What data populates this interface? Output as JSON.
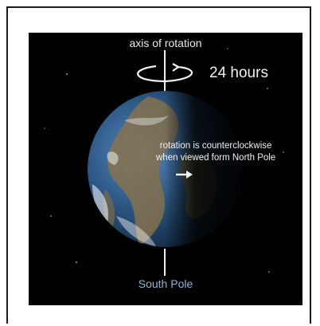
{
  "diagram": {
    "axis_label": "axis of rotation",
    "period_label": "24 hours",
    "rotation_note_line1": "rotation is counterclockwise",
    "rotation_note_line2": "when viewed form North Pole",
    "south_pole_label": "South Pole"
  },
  "colors": {
    "background": "#000000",
    "label_text": "#e8e8e8",
    "pole_label": "#8fb4d8",
    "ocean": "#2e5b8a",
    "land": "#8a7550"
  }
}
